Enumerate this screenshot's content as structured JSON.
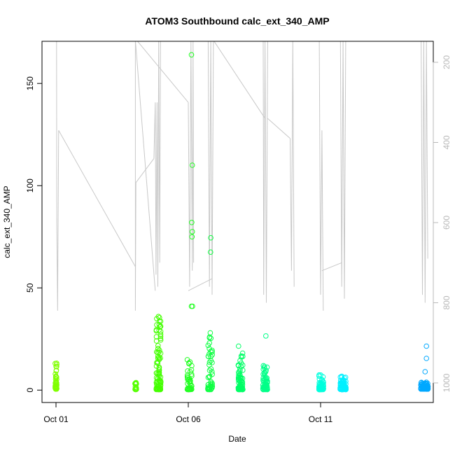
{
  "chart_data": {
    "type": "scatter",
    "title": "ATOM3 Southbound calc_ext_340_AMP",
    "xlabel": "Date",
    "ylabel": "calc_ext_340_AMP",
    "ylim": [
      0,
      170
    ],
    "xlim_days": [
      -0.4,
      14.3
    ],
    "x_ticks": [
      {
        "day": 0,
        "label": "Oct 01"
      },
      {
        "day": 5,
        "label": "Oct 06"
      },
      {
        "day": 10,
        "label": "Oct 11"
      }
    ],
    "y_ticks": [
      0,
      50,
      100,
      150
    ],
    "y2_axis": {
      "label": "",
      "reversed": true,
      "ylim": [
        1080,
        145
      ],
      "ticks": [
        200,
        400,
        600,
        800,
        1000
      ]
    },
    "point_series": [
      {
        "name": "",
        "color": "#80ff00",
        "x": [
          -0.02,
          0.0,
          0.02
        ],
        "y_min": 0.5,
        "y_max": 16,
        "count": 45
      },
      {
        "name": "",
        "color": "#55ff00",
        "x": [
          3.0,
          3.03
        ],
        "y_min": 0.3,
        "y_max": 4,
        "count": 20
      },
      {
        "name": "",
        "color": "#44ff00",
        "x": [
          3.8,
          3.85,
          3.9,
          3.95
        ],
        "y_min": 0.3,
        "y_max": 36,
        "count": 90
      },
      {
        "name": "",
        "color": "#22ff22",
        "x": [
          4.97,
          5.02,
          5.07,
          5.12
        ],
        "y_min": 0.3,
        "y_max": 17,
        "count": 45
      },
      {
        "name": "",
        "color": "#11ff44",
        "x": [
          5.75,
          5.8,
          5.85,
          5.9
        ],
        "y_min": 0.3,
        "y_max": 28,
        "count": 50
      },
      {
        "name": "",
        "color": "#00ff66",
        "x": [
          6.9,
          6.95,
          7.0,
          7.05
        ],
        "y_min": 0.3,
        "y_max": 19,
        "count": 75
      },
      {
        "name": "",
        "color": "#00ff88",
        "x": [
          7.83,
          7.88,
          7.93,
          7.98
        ],
        "y_min": 0.3,
        "y_max": 12,
        "count": 60
      },
      {
        "name": "",
        "color": "#00ffdd",
        "x": [
          9.95,
          10.0,
          10.05,
          10.1
        ],
        "y_min": 0.3,
        "y_max": 8,
        "count": 60
      },
      {
        "name": "",
        "color": "#00f0ff",
        "x": [
          10.75,
          10.8,
          10.85,
          10.9,
          10.95
        ],
        "y_min": 0.3,
        "y_max": 7,
        "count": 70
      },
      {
        "name": "",
        "color": "#00a8ff",
        "x": [
          13.8,
          13.85,
          13.9,
          13.95,
          14.0,
          14.05
        ],
        "y_min": 0.5,
        "y_max": 4,
        "count": 80
      }
    ],
    "extra_points": [
      {
        "x": 5.12,
        "y": 164,
        "color": "#22ff22"
      },
      {
        "x": 5.15,
        "y": 110,
        "color": "#22ff22"
      },
      {
        "x": 5.13,
        "y": 82,
        "color": "#22ff22"
      },
      {
        "x": 5.15,
        "y": 77.5,
        "color": "#22ff22"
      },
      {
        "x": 5.14,
        "y": 75,
        "color": "#22ff22"
      },
      {
        "x": 5.12,
        "y": 41,
        "color": "#22ff22"
      },
      {
        "x": 5.16,
        "y": 41,
        "color": "#22ff22"
      },
      {
        "x": 5.85,
        "y": 74.5,
        "color": "#11ff44"
      },
      {
        "x": 5.84,
        "y": 67.5,
        "color": "#11ff44"
      },
      {
        "x": 5.83,
        "y": 28,
        "color": "#11ff44"
      },
      {
        "x": 5.8,
        "y": 23,
        "color": "#11ff44"
      },
      {
        "x": 7.93,
        "y": 26.5,
        "color": "#00ff88"
      },
      {
        "x": 6.9,
        "y": 21.5,
        "color": "#00ff66"
      },
      {
        "x": 14.0,
        "y": 21.5,
        "color": "#00a8ff"
      },
      {
        "x": 14.0,
        "y": 15.5,
        "color": "#00a8ff"
      },
      {
        "x": 13.95,
        "y": 9,
        "color": "#00a8ff"
      },
      {
        "x": 3.87,
        "y": 36,
        "color": "#44ff00"
      },
      {
        "x": 3.9,
        "y": 32,
        "color": "#44ff00"
      },
      {
        "x": 3.92,
        "y": 31,
        "color": "#44ff00"
      }
    ],
    "depth_profiles": [
      {
        "x": [
          0.02,
          0.03,
          0.06,
          0.08,
          0.1
        ],
        "depth": [
          145,
          600,
          820,
          600,
          370
        ]
      },
      {
        "x": [
          0.1,
          3.0
        ],
        "depth": [
          370,
          710
        ]
      },
      {
        "x": [
          3.0,
          3.0,
          3.02
        ],
        "depth": [
          145,
          820,
          500
        ]
      },
      {
        "x": [
          3.02,
          3.7
        ],
        "depth": [
          500,
          440
        ]
      },
      {
        "x": [
          3.7,
          3.75,
          3.78,
          3.82,
          3.85,
          3.88,
          3.92,
          3.95
        ],
        "depth": [
          440,
          300,
          730,
          300,
          760,
          145,
          700,
          145
        ]
      },
      {
        "x": [
          3.0,
          3.75
        ],
        "depth": [
          145,
          770
        ]
      },
      {
        "x": [
          3.05,
          5.0
        ],
        "depth": [
          145,
          300
        ]
      },
      {
        "x": [
          5.0,
          5.05,
          5.1,
          5.15,
          5.18,
          5.2
        ],
        "depth": [
          300,
          760,
          145,
          720,
          145,
          700
        ]
      },
      {
        "x": [
          5.0,
          5.9
        ],
        "depth": [
          770,
          740
        ]
      },
      {
        "x": [
          5.75,
          5.8,
          5.85,
          5.9,
          5.95
        ],
        "depth": [
          145,
          760,
          145,
          780,
          145
        ]
      },
      {
        "x": [
          5.95,
          7.9
        ],
        "depth": [
          145,
          340
        ]
      },
      {
        "x": [
          7.83,
          7.85,
          7.9,
          7.95,
          8.0
        ],
        "depth": [
          145,
          780,
          145,
          800,
          145
        ]
      },
      {
        "x": [
          8.0,
          8.85
        ],
        "depth": [
          340,
          390
        ]
      },
      {
        "x": [
          8.85,
          8.9,
          8.95,
          9.0
        ],
        "depth": [
          390,
          720,
          145,
          760
        ]
      },
      {
        "x": [
          9.95,
          10.0,
          10.05,
          10.1
        ],
        "depth": [
          145,
          780,
          370,
          820
        ]
      },
      {
        "x": [
          10.05,
          10.8
        ],
        "depth": [
          720,
          700
        ]
      },
      {
        "x": [
          10.75,
          10.8,
          10.85,
          10.9,
          10.95
        ],
        "depth": [
          145,
          760,
          145,
          790,
          145
        ]
      },
      {
        "x": [
          13.8,
          13.85,
          13.9,
          13.95,
          14.0,
          14.05
        ],
        "depth": [
          145,
          780,
          145,
          800,
          145,
          690
        ]
      }
    ]
  }
}
